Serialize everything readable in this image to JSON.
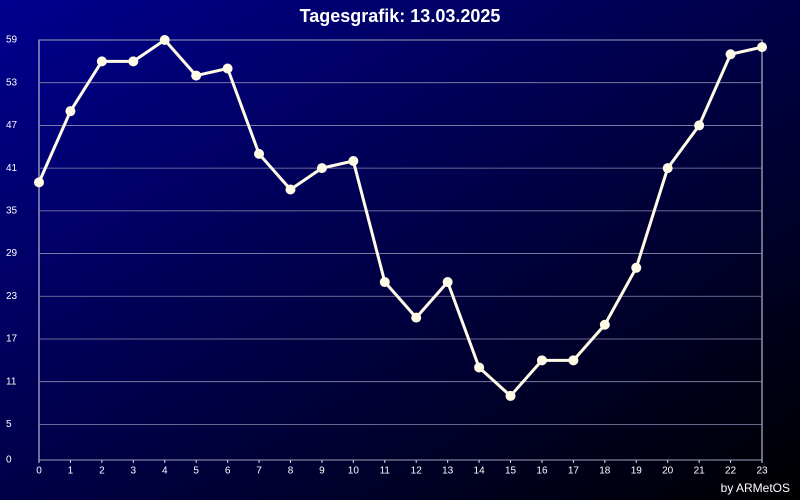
{
  "chart_data": {
    "type": "line",
    "title": "Tagesgrafik: 13.03.2025",
    "footer": "by ARMetOS",
    "x": [
      0,
      1,
      2,
      3,
      4,
      5,
      6,
      7,
      8,
      9,
      10,
      11,
      12,
      13,
      14,
      15,
      16,
      17,
      18,
      19,
      20,
      21,
      22,
      23
    ],
    "series": [
      {
        "color": "#fffbe6",
        "values": [
          39,
          49,
          56,
          56,
          59,
          54,
          55,
          43,
          38,
          41,
          42,
          25,
          20,
          25,
          13,
          9,
          14,
          14,
          19,
          27,
          41,
          47,
          57,
          58
        ]
      }
    ],
    "xlim": [
      0,
      23
    ],
    "xticks": [
      0,
      1,
      2,
      3,
      4,
      5,
      6,
      7,
      8,
      9,
      10,
      11,
      12,
      13,
      14,
      15,
      16,
      17,
      18,
      19,
      20,
      21,
      22,
      23
    ],
    "ylim": [
      0,
      59
    ],
    "yticks": [
      0,
      5,
      11,
      17,
      23,
      29,
      35,
      41,
      47,
      53,
      59
    ],
    "grid": true
  }
}
